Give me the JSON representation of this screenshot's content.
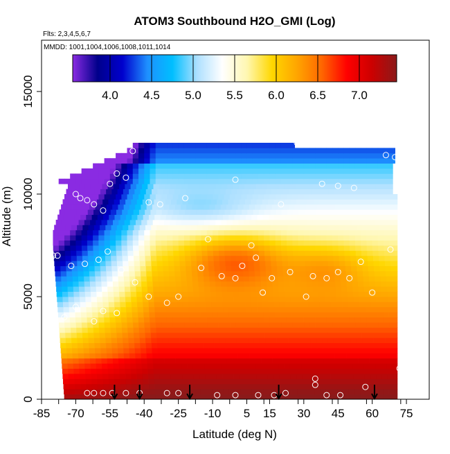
{
  "chart_data": {
    "type": "heatmap",
    "title": "ATOM3 Southbound H2O_GMI (Log)",
    "flights_note": "Flts: 2,3,4,5,6,7",
    "mmdd_note": "MMDD: 1001,1004,1006,1008,1011,1014",
    "xlabel": "Latitude (deg N)",
    "ylabel": "Altitude (m)",
    "xlim": [
      -85,
      85
    ],
    "ylim": [
      0,
      17500
    ],
    "x_ticks": [
      -85,
      -70,
      -55,
      -40,
      -25,
      -10,
      5,
      15,
      30,
      45,
      60,
      75
    ],
    "y_ticks": [
      0,
      5000,
      10000,
      15000
    ],
    "colorbar": {
      "min": 3.55,
      "max": 7.45,
      "ticks": [
        4.0,
        4.5,
        5.0,
        5.5,
        6.0,
        6.5,
        7.0
      ],
      "tick_labels": [
        "4.0",
        "4.5",
        "5.0",
        "5.5",
        "6.0",
        "6.5",
        "7.0"
      ],
      "colors": [
        "#8a2be2",
        "#00008b",
        "#0000cd",
        "#1e90ff",
        "#00bfff",
        "#aee0ff",
        "#ffffff",
        "#fff7b0",
        "#ffd700",
        "#ffa500",
        "#ff6600",
        "#ff0000",
        "#cc0000",
        "#8b1a1a"
      ]
    },
    "profile_latitudes": [
      -53,
      -42,
      -20,
      19,
      61
    ],
    "sample_points": [
      {
        "x": -81,
        "y": 9900
      },
      {
        "x": -70,
        "y": 10000
      },
      {
        "x": -68,
        "y": 9800
      },
      {
        "x": -65,
        "y": 9700
      },
      {
        "x": -62,
        "y": 9500
      },
      {
        "x": -58,
        "y": 9200
      },
      {
        "x": -55,
        "y": 10500
      },
      {
        "x": -52,
        "y": 11000
      },
      {
        "x": -48,
        "y": 10800
      },
      {
        "x": -45,
        "y": 12100
      },
      {
        "x": -38,
        "y": 9600
      },
      {
        "x": -33,
        "y": 9500
      },
      {
        "x": -22,
        "y": 9800
      },
      {
        "x": -12,
        "y": 7800
      },
      {
        "x": 0,
        "y": 10700
      },
      {
        "x": 7,
        "y": 7500
      },
      {
        "x": 20,
        "y": 9500
      },
      {
        "x": 27,
        "y": 12500
      },
      {
        "x": 38,
        "y": 10500
      },
      {
        "x": 45,
        "y": 10400
      },
      {
        "x": 52,
        "y": 10300
      },
      {
        "x": 66,
        "y": 11900
      },
      {
        "x": 70,
        "y": 11800
      },
      {
        "x": -78,
        "y": 7000
      },
      {
        "x": -72,
        "y": 6500
      },
      {
        "x": -66,
        "y": 6600
      },
      {
        "x": -60,
        "y": 6800
      },
      {
        "x": -56,
        "y": 7200
      },
      {
        "x": -50,
        "y": 6300
      },
      {
        "x": -44,
        "y": 5700
      },
      {
        "x": -38,
        "y": 5000
      },
      {
        "x": -30,
        "y": 4700
      },
      {
        "x": -25,
        "y": 5000
      },
      {
        "x": -15,
        "y": 6400
      },
      {
        "x": -6,
        "y": 6000
      },
      {
        "x": 0,
        "y": 5900
      },
      {
        "x": 3,
        "y": 6500
      },
      {
        "x": 9,
        "y": 6900
      },
      {
        "x": 12,
        "y": 5200
      },
      {
        "x": 16,
        "y": 5900
      },
      {
        "x": 24,
        "y": 6200
      },
      {
        "x": 31,
        "y": 5000
      },
      {
        "x": 34,
        "y": 6000
      },
      {
        "x": 40,
        "y": 5900
      },
      {
        "x": 45,
        "y": 6200
      },
      {
        "x": 50,
        "y": 5900
      },
      {
        "x": 55,
        "y": 6700
      },
      {
        "x": 60,
        "y": 5200
      },
      {
        "x": 68,
        "y": 7300
      },
      {
        "x": -75,
        "y": 4000
      },
      {
        "x": -70,
        "y": 4500
      },
      {
        "x": -62,
        "y": 3800
      },
      {
        "x": -58,
        "y": 4300
      },
      {
        "x": -80,
        "y": 7000
      },
      {
        "x": -52,
        "y": 4200
      },
      {
        "x": -65,
        "y": 300
      },
      {
        "x": -62,
        "y": 300
      },
      {
        "x": -58,
        "y": 300
      },
      {
        "x": -54,
        "y": 300
      },
      {
        "x": -48,
        "y": 300
      },
      {
        "x": -42,
        "y": 300
      },
      {
        "x": -30,
        "y": 300
      },
      {
        "x": -25,
        "y": 300
      },
      {
        "x": -8,
        "y": 200
      },
      {
        "x": 0,
        "y": 200
      },
      {
        "x": 10,
        "y": 200
      },
      {
        "x": 17,
        "y": 200
      },
      {
        "x": 22,
        "y": 300
      },
      {
        "x": 35,
        "y": 700
      },
      {
        "x": 35,
        "y": 1000
      },
      {
        "x": 40,
        "y": 200
      },
      {
        "x": 46,
        "y": 200
      },
      {
        "x": 57,
        "y": 600
      },
      {
        "x": 72,
        "y": 1500
      }
    ]
  }
}
